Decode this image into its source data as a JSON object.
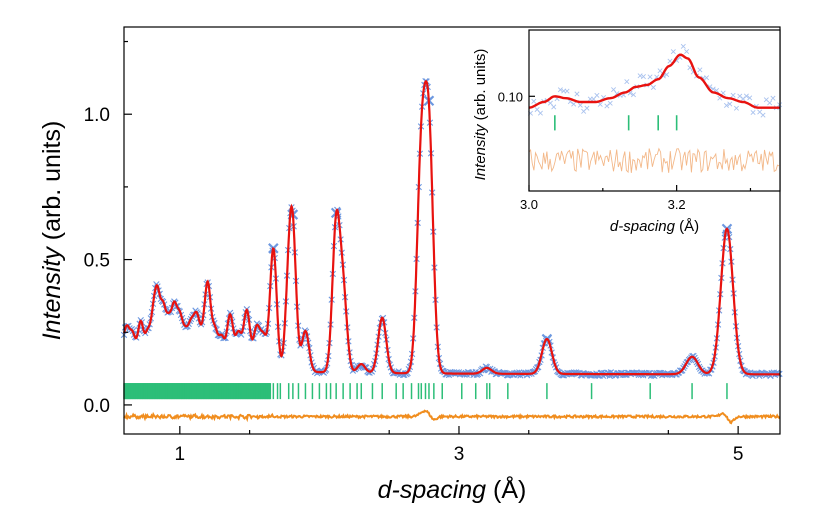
{
  "chart_data": [
    {
      "type": "line",
      "panel": "main",
      "xlabel_italic": "d-spacing",
      "xlabel_unit": " (Å)",
      "ylabel_italic": "Intensity",
      "ylabel_unit": " (arb. units)",
      "xlim": [
        0.6,
        5.3
      ],
      "ylim": [
        -0.1,
        1.3
      ],
      "xticks": [
        1,
        3,
        5
      ],
      "xtick_labels": [
        "1",
        "3",
        "5"
      ],
      "yticks": [
        0.0,
        0.5,
        1.0
      ],
      "ytick_labels": [
        "0.0",
        "0.5",
        "1.0"
      ],
      "grid": false,
      "legend": "none",
      "background": 0.105,
      "peaks": [
        {
          "x": 0.62,
          "h": 0.06
        },
        {
          "x": 0.66,
          "h": 0.05
        },
        {
          "x": 0.72,
          "h": 0.1
        },
        {
          "x": 0.77,
          "h": 0.07
        },
        {
          "x": 0.81,
          "h": 0.12
        },
        {
          "x": 0.84,
          "h": 0.19
        },
        {
          "x": 0.88,
          "h": 0.16
        },
        {
          "x": 0.92,
          "h": 0.12
        },
        {
          "x": 0.96,
          "h": 0.17
        },
        {
          "x": 1.0,
          "h": 0.14
        },
        {
          "x": 1.04,
          "h": 0.09
        },
        {
          "x": 1.08,
          "h": 0.12
        },
        {
          "x": 1.12,
          "h": 0.15
        },
        {
          "x": 1.16,
          "h": 0.08
        },
        {
          "x": 1.2,
          "h": 0.27
        },
        {
          "x": 1.25,
          "h": 0.12
        },
        {
          "x": 1.3,
          "h": 0.1
        },
        {
          "x": 1.36,
          "h": 0.18
        },
        {
          "x": 1.42,
          "h": 0.12
        },
        {
          "x": 1.48,
          "h": 0.2
        },
        {
          "x": 1.55,
          "h": 0.14
        },
        {
          "x": 1.6,
          "h": 0.11
        },
        {
          "x": 1.67,
          "h": 0.42
        },
        {
          "x": 1.78,
          "h": 0.25
        },
        {
          "x": 1.81,
          "h": 0.42
        },
        {
          "x": 1.9,
          "h": 0.14
        },
        {
          "x": 2.12,
          "h": 0.5
        },
        {
          "x": 2.17,
          "h": 0.27
        },
        {
          "x": 2.3,
          "h": 0.03
        },
        {
          "x": 2.45,
          "h": 0.19
        },
        {
          "x": 2.73,
          "h": 0.71
        },
        {
          "x": 2.785,
          "h": 0.79
        },
        {
          "x": 3.2,
          "h": 0.02
        },
        {
          "x": 3.63,
          "h": 0.12
        },
        {
          "x": 4.67,
          "h": 0.06
        },
        {
          "x": 4.92,
          "h": 0.5
        }
      ],
      "tick_marks_x": [
        1.67,
        1.7,
        1.72,
        1.78,
        1.81,
        1.85,
        1.9,
        1.95,
        2.0,
        2.05,
        2.08,
        2.12,
        2.17,
        2.22,
        2.27,
        2.3,
        2.38,
        2.45,
        2.55,
        2.6,
        2.66,
        2.71,
        2.73,
        2.76,
        2.785,
        2.82,
        2.88,
        3.02,
        3.12,
        3.2,
        3.22,
        3.35,
        3.63,
        3.95,
        4.37,
        4.67,
        4.92
      ],
      "tick_marks_dense_range": [
        0.6,
        1.65
      ],
      "tick_marks_y_range": [
        0.02,
        0.075
      ],
      "difference_offset": -0.04,
      "series": [
        {
          "role": "observed",
          "marker": "x",
          "color": "#6d98e0"
        },
        {
          "role": "calculated",
          "color": "#e8120f"
        },
        {
          "role": "reflections",
          "color": "#2cbe78"
        },
        {
          "role": "difference",
          "color": "#f08d1e"
        }
      ]
    },
    {
      "type": "line",
      "panel": "inset",
      "xlabel_italic": "d-spacing",
      "xlabel_unit": " (Å)",
      "ylabel_italic": "Intensity",
      "ylabel_unit": " (arb. units)",
      "xlim": [
        3.0,
        3.34
      ],
      "ylim": [
        0.05,
        0.135
      ],
      "xticks": [
        3.0,
        3.2
      ],
      "xtick_labels": [
        "3.0",
        "3.2"
      ],
      "yticks": [
        0.1
      ],
      "ytick_labels": [
        "0.10"
      ],
      "calc_points": [
        [
          3.0,
          0.094
        ],
        [
          3.02,
          0.097
        ],
        [
          3.035,
          0.1
        ],
        [
          3.05,
          0.099
        ],
        [
          3.07,
          0.097
        ],
        [
          3.09,
          0.097
        ],
        [
          3.11,
          0.099
        ],
        [
          3.13,
          0.102
        ],
        [
          3.145,
          0.105
        ],
        [
          3.16,
          0.106
        ],
        [
          3.175,
          0.109
        ],
        [
          3.19,
          0.116
        ],
        [
          3.205,
          0.122
        ],
        [
          3.215,
          0.12
        ],
        [
          3.23,
          0.11
        ],
        [
          3.25,
          0.102
        ],
        [
          3.27,
          0.099
        ],
        [
          3.29,
          0.097
        ],
        [
          3.31,
          0.094
        ],
        [
          3.33,
          0.094
        ]
      ],
      "reflection_ticks_x": [
        3.035,
        3.135,
        3.175,
        3.2
      ],
      "reflection_tick_y": [
        0.082,
        0.09
      ],
      "difference_base": 0.066,
      "series": [
        {
          "role": "observed",
          "marker": "x",
          "color": "#a9c2ee"
        },
        {
          "role": "calculated",
          "color": "#e8120f"
        },
        {
          "role": "reflections",
          "color": "#2cbe78"
        },
        {
          "role": "difference",
          "color": "#f3b889"
        }
      ]
    }
  ]
}
